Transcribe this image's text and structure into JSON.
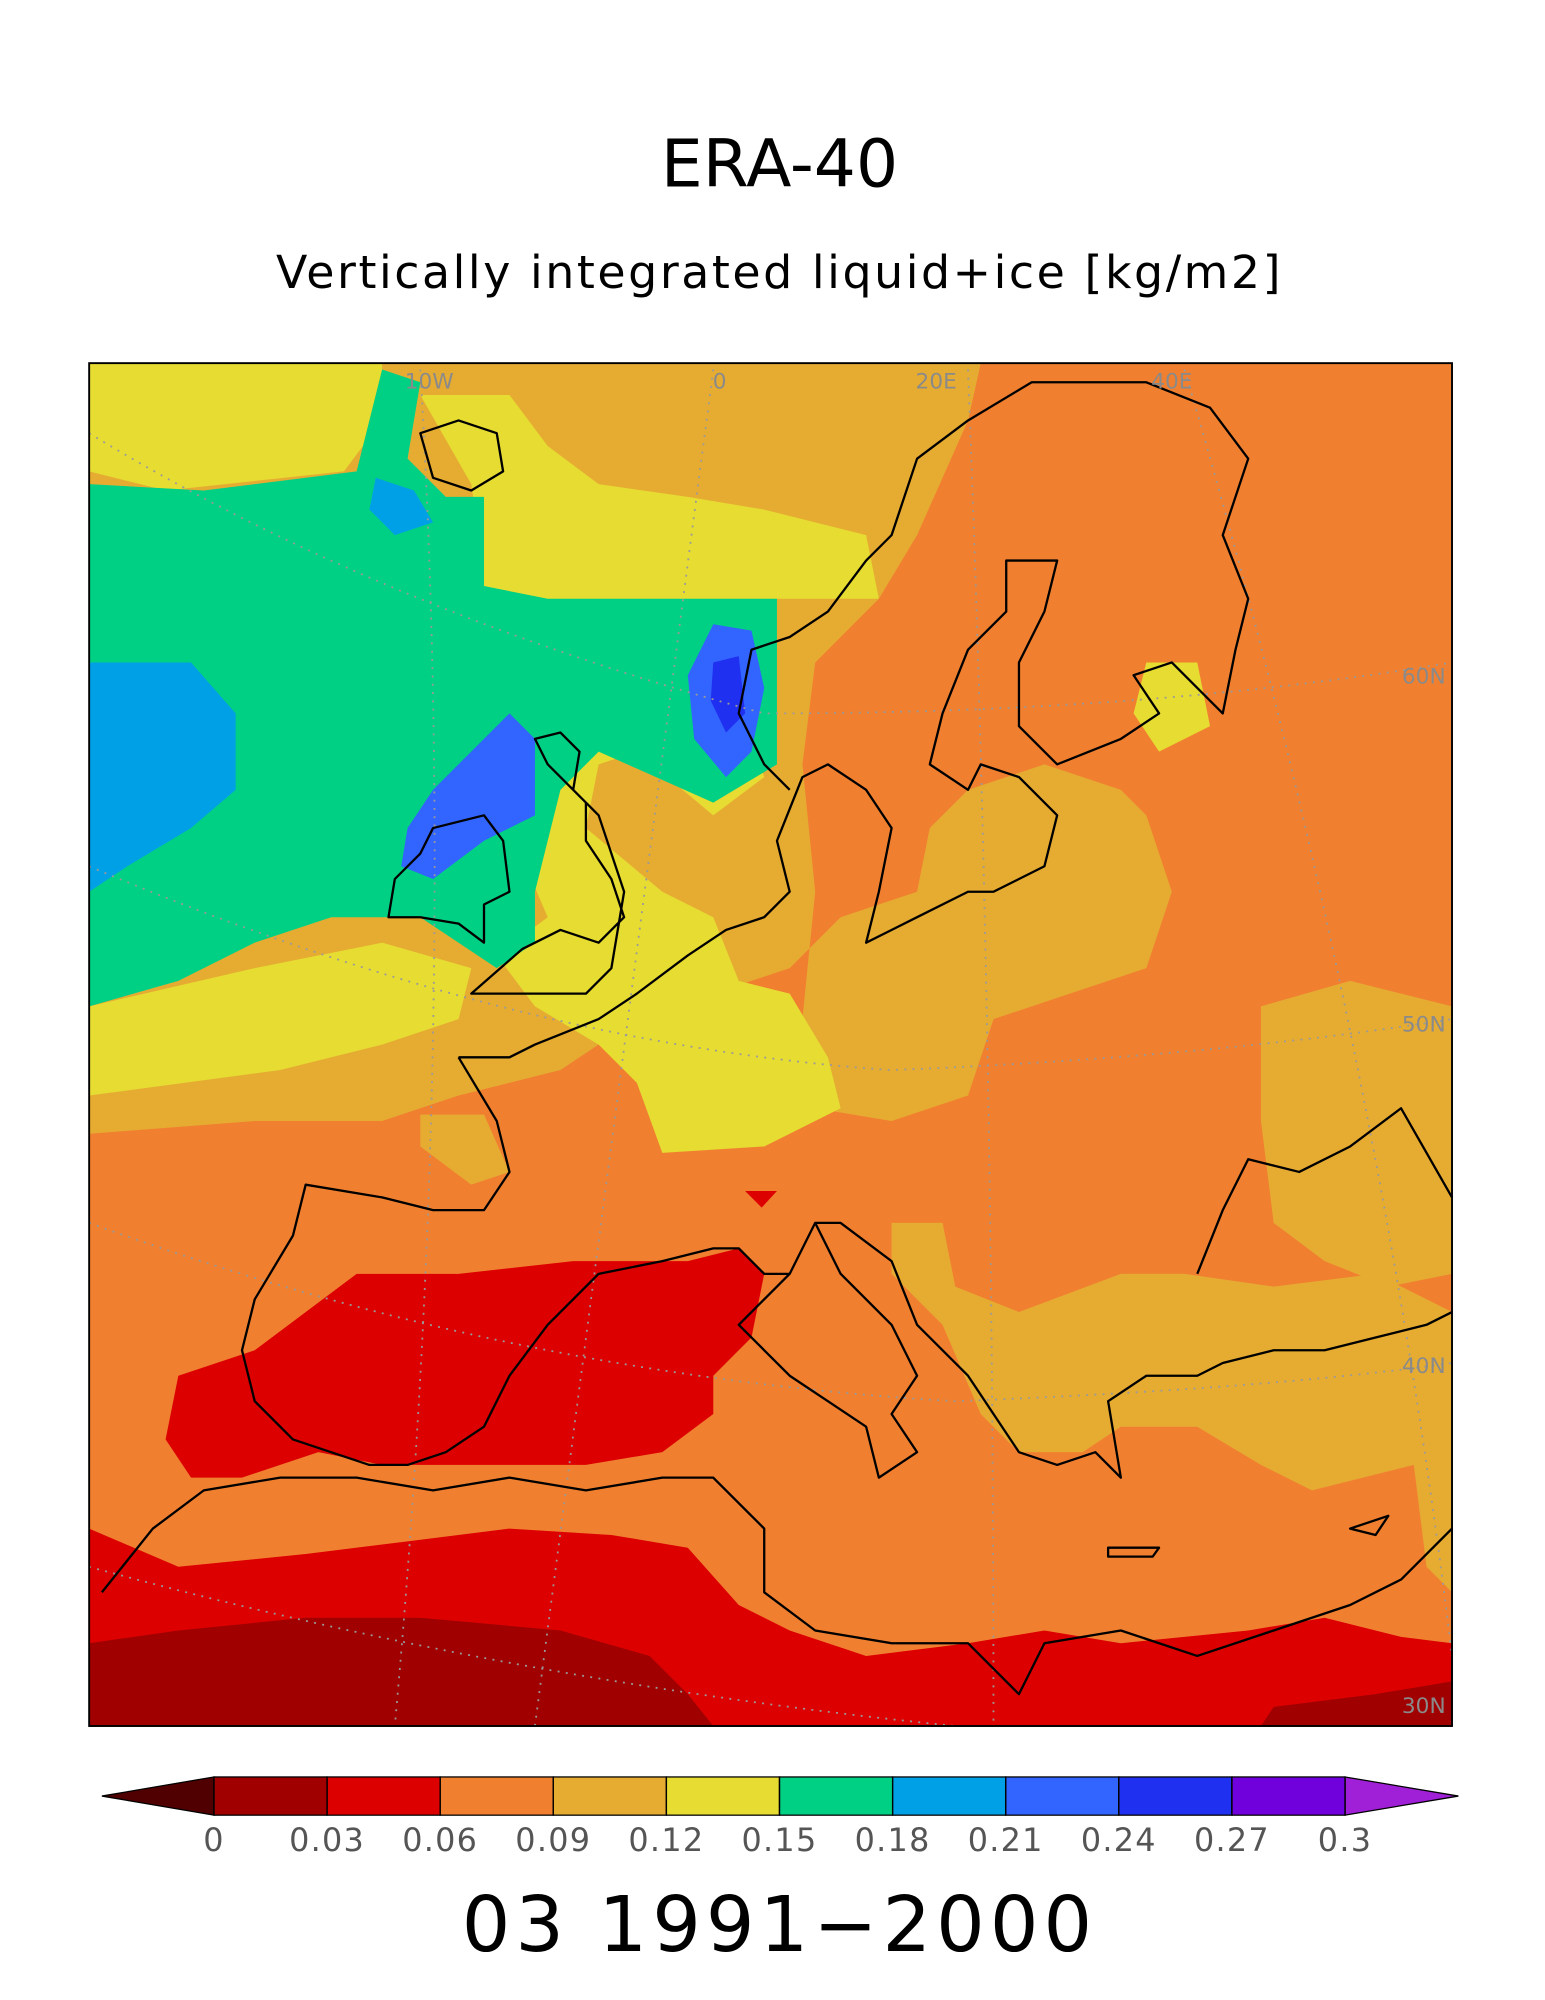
{
  "title": "ERA-40",
  "subtitle": "Vertically integrated liquid+ice [kg/m2]",
  "period": "03 1991−2000",
  "map": {
    "lon_labels": [
      "10W",
      "0",
      "20E",
      "40E"
    ],
    "lat_labels": [
      "60N",
      "50N",
      "40N",
      "30N"
    ]
  },
  "colorbar": {
    "levels": [
      0,
      0.03,
      0.06,
      0.09,
      0.12,
      0.15,
      0.18,
      0.21,
      0.24,
      0.27,
      0.3
    ],
    "colors": [
      "#a00000",
      "#dd0000",
      "#f08030",
      "#e6ac32",
      "#e6dc32",
      "#00d084",
      "#00a0e6",
      "#3264ff",
      "#2030f0",
      "#7000dc"
    ],
    "under_color": "#500000",
    "over_color": "#a020d8"
  }
}
